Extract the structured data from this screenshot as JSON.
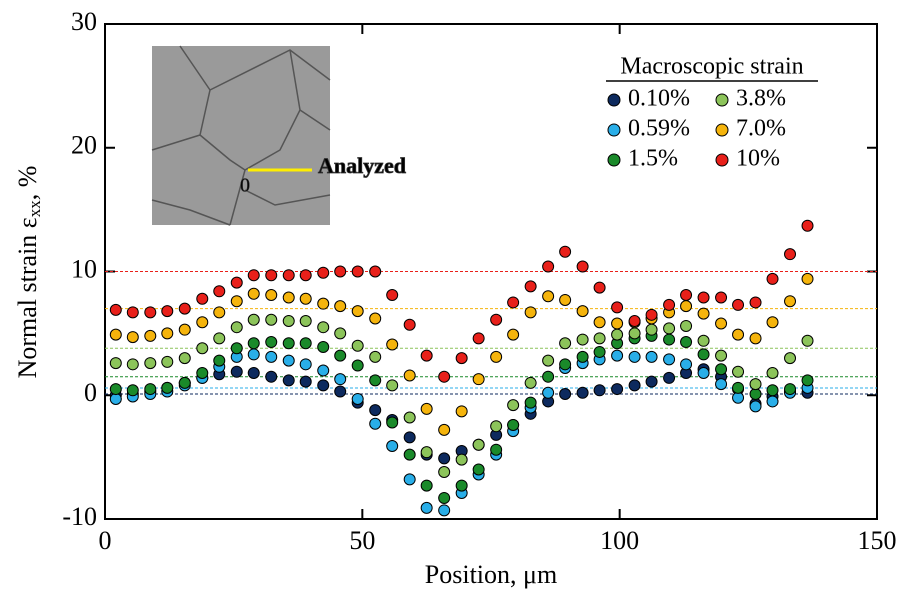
{
  "chart_data": {
    "type": "scatter",
    "x_label": "Position, μm",
    "y_label": [
      "Normal strain ε",
      "xx",
      ", %"
    ],
    "legend_title": "Macroscopic strain",
    "inset_label": "Analyzed",
    "inset_origin_label": "0",
    "xlim": [
      0,
      150
    ],
    "xticks": [
      0,
      50,
      100,
      150
    ],
    "ylim": [
      -10,
      30
    ],
    "yticks": [
      -10,
      0,
      10,
      20,
      30
    ],
    "x": [
      2.1,
      5.4,
      8.8,
      12.1,
      15.5,
      18.9,
      22.2,
      25.6,
      28.9,
      32.3,
      35.7,
      39.0,
      42.4,
      45.7,
      49.1,
      52.5,
      55.8,
      59.2,
      62.5,
      65.9,
      69.3,
      72.6,
      76.0,
      79.3,
      82.7,
      86.1,
      89.4,
      92.8,
      96.1,
      99.5,
      102.9,
      106.2,
      109.6,
      112.9,
      116.3,
      119.7,
      123.0,
      126.4,
      129.7,
      133.1,
      136.5
    ],
    "series": [
      {
        "name": "0.10%",
        "color": "#0d2a5e",
        "reference": 0.1,
        "values": [
          0.0,
          0.1,
          0.3,
          0.6,
          1.0,
          1.4,
          1.7,
          1.9,
          1.8,
          1.5,
          1.2,
          1.1,
          0.8,
          0.3,
          -0.6,
          -1.2,
          -2.0,
          -3.4,
          -4.8,
          -5.1,
          -4.5,
          -4.0,
          -3.2,
          -2.4,
          -1.5,
          -0.5,
          0.1,
          0.2,
          0.4,
          0.5,
          0.8,
          1.1,
          1.4,
          1.8,
          2.1,
          1.5,
          0.5,
          -0.7,
          -0.1,
          0.3,
          0.2
        ]
      },
      {
        "name": "0.59%",
        "color": "#29aee8",
        "reference": 0.59,
        "values": [
          -0.3,
          -0.1,
          0.1,
          0.3,
          0.8,
          1.4,
          2.3,
          3.1,
          3.3,
          3.1,
          2.8,
          2.5,
          2.0,
          1.3,
          -0.3,
          -2.3,
          -4.1,
          -6.8,
          -9.1,
          -9.3,
          -7.9,
          -6.4,
          -4.8,
          -2.9,
          -1.0,
          0.2,
          2.2,
          2.6,
          2.9,
          3.2,
          3.1,
          3.1,
          2.9,
          2.5,
          1.8,
          0.9,
          -0.2,
          -0.9,
          -0.5,
          0.2,
          0.6
        ]
      },
      {
        "name": "1.5%",
        "color": "#1a8a2a",
        "reference": 1.5,
        "values": [
          0.5,
          0.4,
          0.5,
          0.6,
          1.0,
          1.8,
          2.8,
          3.8,
          4.2,
          4.3,
          4.2,
          4.2,
          3.9,
          3.2,
          2.4,
          1.2,
          -2.2,
          -4.8,
          -7.3,
          -8.3,
          -7.3,
          -6.0,
          -4.4,
          -2.4,
          -0.6,
          1.5,
          2.5,
          3.1,
          3.5,
          4.2,
          4.6,
          4.8,
          4.5,
          4.3,
          3.3,
          2.1,
          0.6,
          0.1,
          0.4,
          0.5,
          1.2
        ]
      },
      {
        "name": "3.8%",
        "color": "#8cc45a",
        "reference": 3.8,
        "values": [
          2.6,
          2.5,
          2.6,
          2.7,
          3.0,
          3.8,
          4.6,
          5.5,
          6.1,
          6.1,
          6.0,
          6.0,
          5.5,
          5.0,
          4.0,
          3.1,
          0.8,
          -1.8,
          -4.6,
          -6.2,
          -5.2,
          -4.0,
          -2.5,
          -0.8,
          1.0,
          2.8,
          4.2,
          4.5,
          4.6,
          4.9,
          5.0,
          5.3,
          5.4,
          5.6,
          4.4,
          3.2,
          1.9,
          0.9,
          1.8,
          3.0,
          4.4
        ]
      },
      {
        "name": "7.0%",
        "color": "#f5b40c",
        "reference": 7.0,
        "values": [
          4.9,
          4.7,
          4.8,
          5.0,
          5.3,
          5.9,
          6.7,
          7.6,
          8.2,
          8.1,
          7.9,
          7.8,
          7.4,
          7.2,
          6.8,
          6.2,
          4.1,
          1.6,
          -1.1,
          -2.8,
          -1.3,
          1.3,
          3.1,
          4.9,
          6.7,
          8.0,
          7.7,
          6.8,
          5.9,
          5.8,
          5.9,
          6.2,
          6.7,
          7.2,
          6.6,
          5.8,
          4.9,
          4.6,
          5.9,
          7.6,
          9.4
        ]
      },
      {
        "name": "10%",
        "color": "#e8201a",
        "reference": 10,
        "values": [
          6.9,
          6.7,
          6.7,
          6.8,
          7.0,
          7.8,
          8.4,
          9.1,
          9.7,
          9.7,
          9.7,
          9.7,
          9.9,
          10.0,
          10.0,
          10.0,
          8.1,
          5.7,
          3.2,
          1.5,
          3.0,
          4.6,
          6.1,
          7.5,
          8.8,
          10.4,
          11.6,
          10.4,
          8.7,
          7.1,
          6.0,
          6.5,
          7.3,
          8.1,
          7.9,
          7.9,
          7.3,
          7.5,
          9.4,
          11.4,
          13.7
        ]
      }
    ]
  }
}
